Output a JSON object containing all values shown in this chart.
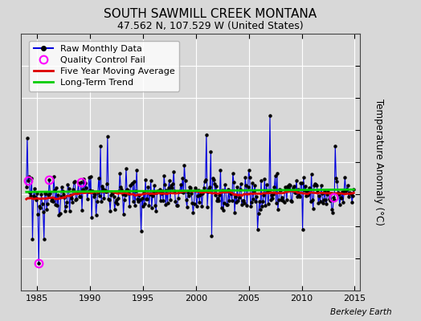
{
  "title": "SOUTH SAWMILL CREEK MONTANA",
  "subtitle": "47.562 N, 107.529 W (United States)",
  "ylabel": "Temperature Anomaly (°C)",
  "watermark": "Berkeley Earth",
  "xlim": [
    1983.5,
    2015.5
  ],
  "ylim": [
    -15,
    25
  ],
  "yticks": [
    -15,
    -10,
    -5,
    0,
    5,
    10,
    15,
    20,
    25
  ],
  "xticks": [
    1985,
    1990,
    1995,
    2000,
    2005,
    2010,
    2015
  ],
  "bg_color": "#d8d8d8",
  "plot_bg_color": "#d8d8d8",
  "raw_color": "#0000dd",
  "raw_marker_color": "#000000",
  "qc_color": "#ff00ff",
  "moving_avg_color": "#dd0000",
  "trend_color": "#00cc00",
  "title_fontsize": 11,
  "subtitle_fontsize": 9,
  "legend_fontsize": 8,
  "tick_fontsize": 8,
  "seed": 42
}
